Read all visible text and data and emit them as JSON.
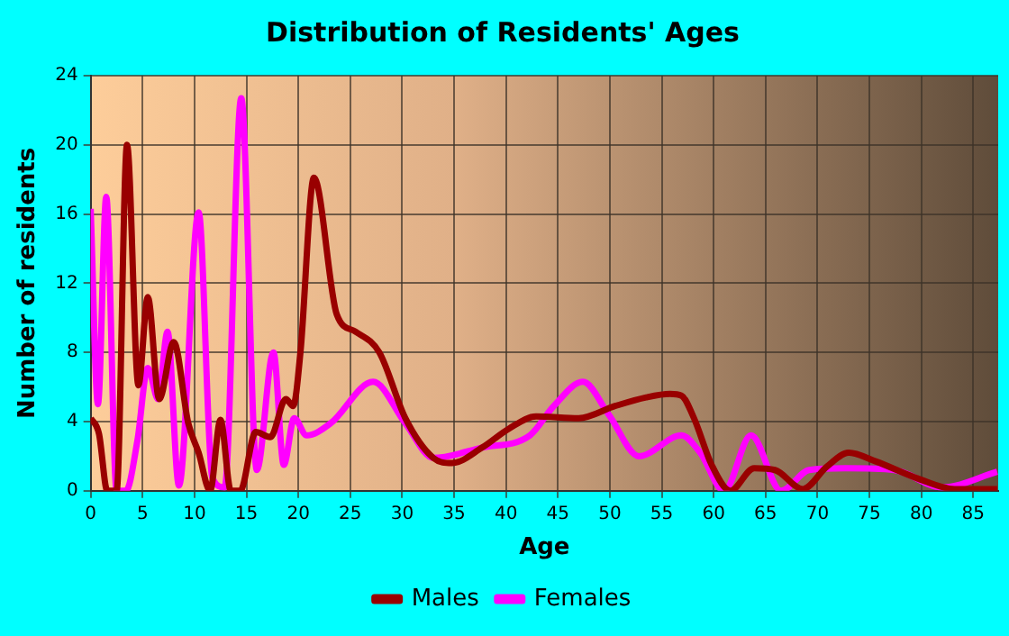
{
  "chart_data": {
    "type": "line",
    "title": "Distribution of Residents' Ages",
    "xlabel": "Age",
    "ylabel": "Number of residents",
    "xlim": [
      0,
      87.4
    ],
    "xticks": [
      0,
      5,
      10,
      15,
      20,
      25,
      30,
      35,
      40,
      45,
      50,
      55,
      60,
      65,
      70,
      75,
      80,
      85
    ],
    "ylim": [
      0,
      24
    ],
    "yticks": [
      0,
      4,
      8,
      12,
      16,
      20,
      24
    ],
    "grid": true,
    "legend": "bottom",
    "marker": "none",
    "line_style": "solid",
    "series": [
      {
        "name": "Males",
        "color": "#990000",
        "x": [
          0,
          0.8,
          1.6,
          2.5,
          3.5,
          4.6,
          5.5,
          6.6,
          8,
          9.4,
          10.4,
          11.5,
          12.5,
          13.5,
          14.4,
          15.9,
          17.3,
          18.8,
          19.5,
          20.2,
          21.5,
          23.7,
          25.5,
          27.8,
          30.3,
          33,
          34.8,
          37.7,
          40.3,
          42.9,
          47,
          50.5,
          53.5,
          55.8,
          56.9,
          58.1,
          59.8,
          61.6,
          63.9,
          65.9,
          68.6,
          70.9,
          73,
          75.6,
          79.7,
          83.2,
          87.3
        ],
        "values": [
          4.2,
          3.3,
          0,
          0,
          20,
          6.1,
          11.2,
          5.3,
          8.6,
          3.9,
          2.2,
          0,
          4.1,
          0,
          0,
          3.4,
          3.1,
          5.3,
          4.9,
          8,
          18.1,
          10.2,
          9.2,
          8,
          4.2,
          1.9,
          1.6,
          2.5,
          3.6,
          4.3,
          4.2,
          4.9,
          5.4,
          5.6,
          5.5,
          4.2,
          1.5,
          0,
          1.3,
          1.2,
          0.1,
          1.4,
          2.2,
          1.7,
          0.7,
          0.1,
          0.1
        ]
      },
      {
        "name": "Females",
        "color": "#ff00ff",
        "x": [
          0,
          0.7,
          1.5,
          2.5,
          3.4,
          4.5,
          5.5,
          6.5,
          7.4,
          8.5,
          10.4,
          11.7,
          12.9,
          14.5,
          16,
          17.6,
          18.6,
          19.6,
          20.8,
          23.1,
          27.2,
          30.3,
          33,
          37.7,
          42.3,
          44.6,
          47.4,
          49.9,
          52.8,
          56.9,
          58.7,
          61,
          63.6,
          66.5,
          69.2,
          72.7,
          77.4,
          82,
          87.3
        ],
        "values": [
          16.3,
          5,
          17,
          0,
          0,
          2.9,
          7.1,
          5.3,
          9.2,
          0.3,
          16.1,
          0.8,
          0.2,
          22.7,
          1.2,
          8,
          1.5,
          4.2,
          3.2,
          3.9,
          6.3,
          3.9,
          1.9,
          2.5,
          3.2,
          4.9,
          6.3,
          4.4,
          2,
          3.2,
          2.2,
          0,
          3.2,
          0,
          1.2,
          1.3,
          1.2,
          0.2,
          1.1
        ]
      }
    ]
  }
}
